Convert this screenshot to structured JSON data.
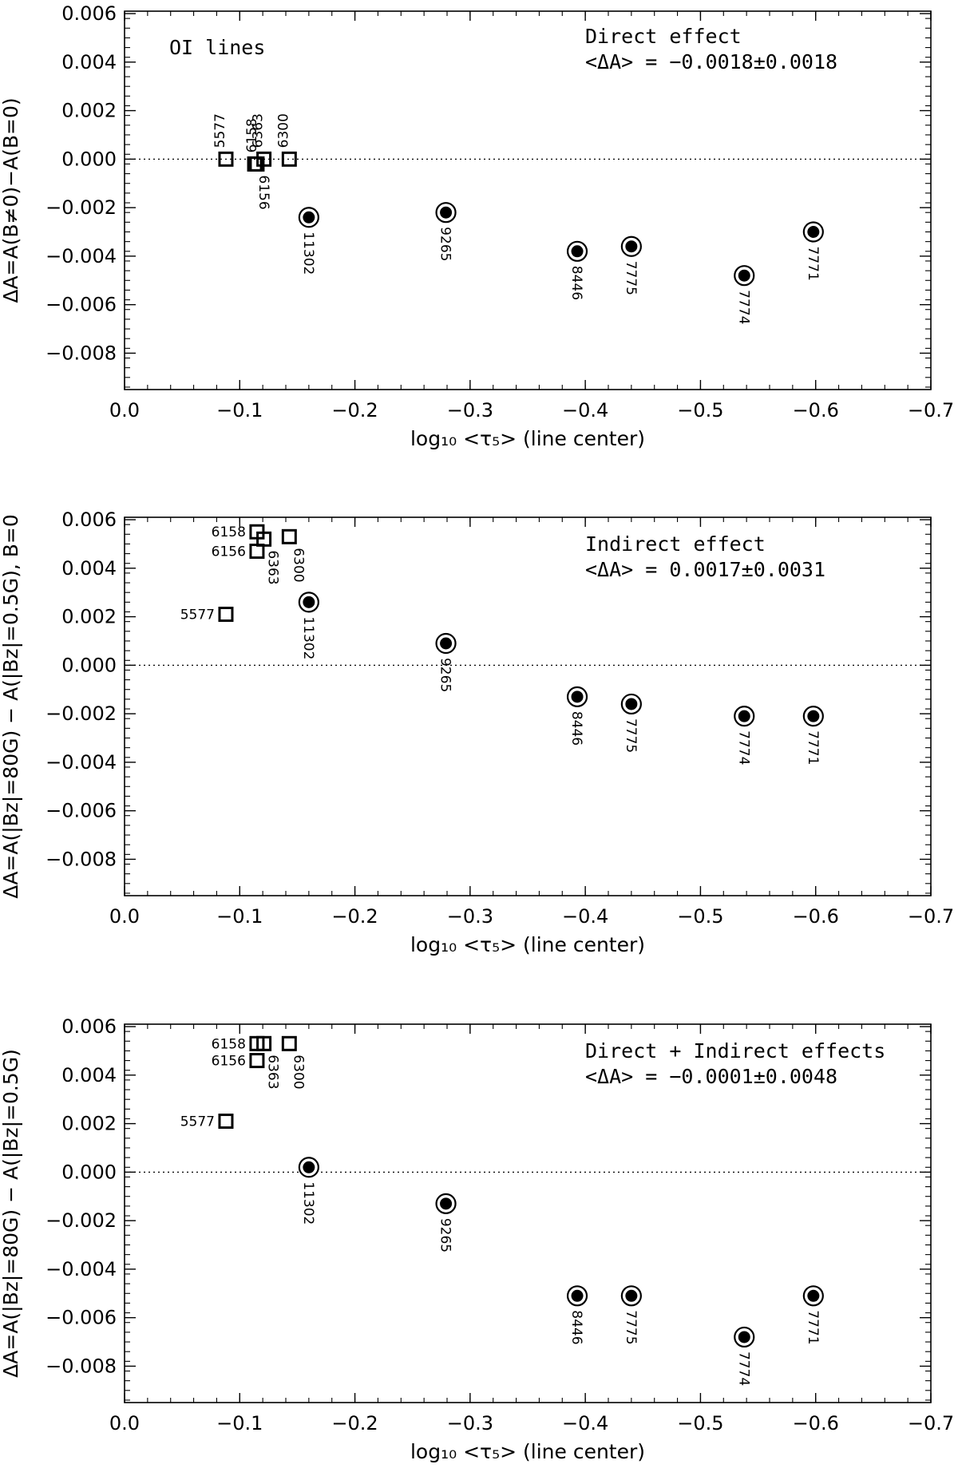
{
  "chart_data": [
    {
      "type": "scatter",
      "title": "",
      "xlabel": "log₁₀ <τ₅> (line center)",
      "ylabel": "ΔA=A(B≠0)−A(B=0)",
      "xlim": [
        0.0,
        -0.7
      ],
      "ylim": [
        -0.0095,
        0.0061
      ],
      "xticks": [
        "0.0",
        "−0.1",
        "−0.2",
        "−0.3",
        "−0.4",
        "−0.5",
        "−0.6",
        "−0.7"
      ],
      "yticks": [
        "0.006",
        "0.004",
        "0.002",
        "0.000",
        "−0.002",
        "−0.004",
        "−0.006",
        "−0.008"
      ],
      "annotations": [
        "OI lines",
        "Direct effect",
        "<ΔA> = −0.0018±0.0018"
      ],
      "series": [
        {
          "marker": "open-square",
          "points": [
            {
              "label": "5577",
              "x": -0.088,
              "y": 0.0
            },
            {
              "label": "6158",
              "x": -0.115,
              "y": -0.0002
            },
            {
              "label": "6156",
              "x": -0.113,
              "y": -0.0002
            },
            {
              "label": "6363",
              "x": -0.121,
              "y": 0.0
            },
            {
              "label": "6300",
              "x": -0.143,
              "y": 0.0
            }
          ]
        },
        {
          "marker": "circled-dot",
          "points": [
            {
              "label": "11302",
              "x": -0.16,
              "y": -0.0024
            },
            {
              "label": "9265",
              "x": -0.279,
              "y": -0.0022
            },
            {
              "label": "8446",
              "x": -0.393,
              "y": -0.0038
            },
            {
              "label": "7775",
              "x": -0.44,
              "y": -0.0036
            },
            {
              "label": "7774",
              "x": -0.538,
              "y": -0.0048
            },
            {
              "label": "7771",
              "x": -0.598,
              "y": -0.003
            }
          ]
        }
      ]
    },
    {
      "type": "scatter",
      "title": "",
      "xlabel": "log₁₀ <τ₅> (line center)",
      "ylabel": "ΔA=A(|Bz|=80G) − A(|Bz|=0.5G), B=0",
      "xlim": [
        0.0,
        -0.7
      ],
      "ylim": [
        -0.0095,
        0.0061
      ],
      "xticks": [
        "0.0",
        "−0.1",
        "−0.2",
        "−0.3",
        "−0.4",
        "−0.5",
        "−0.6",
        "−0.7"
      ],
      "yticks": [
        "0.006",
        "0.004",
        "0.002",
        "0.000",
        "−0.002",
        "−0.004",
        "−0.006",
        "−0.008"
      ],
      "annotations": [
        "Indirect effect",
        "<ΔA> = 0.0017±0.0031"
      ],
      "series": [
        {
          "marker": "open-square",
          "points": [
            {
              "label": "5577",
              "x": -0.088,
              "y": 0.0021
            },
            {
              "label": "6158",
              "x": -0.115,
              "y": 0.0055
            },
            {
              "label": "6156",
              "x": -0.115,
              "y": 0.0047
            },
            {
              "label": "6363",
              "x": -0.121,
              "y": 0.0052
            },
            {
              "label": "6300",
              "x": -0.143,
              "y": 0.0053
            }
          ]
        },
        {
          "marker": "circled-dot",
          "points": [
            {
              "label": "11302",
              "x": -0.16,
              "y": 0.0026
            },
            {
              "label": "9265",
              "x": -0.279,
              "y": 0.0009
            },
            {
              "label": "8446",
              "x": -0.393,
              "y": -0.0013
            },
            {
              "label": "7775",
              "x": -0.44,
              "y": -0.0016
            },
            {
              "label": "7774",
              "x": -0.538,
              "y": -0.0021
            },
            {
              "label": "7771",
              "x": -0.598,
              "y": -0.0021
            }
          ]
        }
      ]
    },
    {
      "type": "scatter",
      "title": "",
      "xlabel": "log₁₀ <τ₅> (line center)",
      "ylabel": "ΔA=A(|Bz|=80G) − A(|Bz|=0.5G)",
      "xlim": [
        0.0,
        -0.7
      ],
      "ylim": [
        -0.0095,
        0.0061
      ],
      "xticks": [
        "0.0",
        "−0.1",
        "−0.2",
        "−0.3",
        "−0.4",
        "−0.5",
        "−0.6",
        "−0.7"
      ],
      "yticks": [
        "0.006",
        "0.004",
        "0.002",
        "0.000",
        "−0.002",
        "−0.004",
        "−0.006",
        "−0.008"
      ],
      "annotations": [
        "Direct + Indirect effects",
        "<ΔA> = −0.0001±0.0048"
      ],
      "series": [
        {
          "marker": "open-square",
          "points": [
            {
              "label": "5577",
              "x": -0.088,
              "y": 0.0021
            },
            {
              "label": "6158",
              "x": -0.115,
              "y": 0.0053
            },
            {
              "label": "6156",
              "x": -0.115,
              "y": 0.0046
            },
            {
              "label": "6363",
              "x": -0.121,
              "y": 0.0053
            },
            {
              "label": "6300",
              "x": -0.143,
              "y": 0.0053
            }
          ]
        },
        {
          "marker": "circled-dot",
          "points": [
            {
              "label": "11302",
              "x": -0.16,
              "y": 0.0002
            },
            {
              "label": "9265",
              "x": -0.279,
              "y": -0.0013
            },
            {
              "label": "8446",
              "x": -0.393,
              "y": -0.0051
            },
            {
              "label": "7775",
              "x": -0.44,
              "y": -0.0051
            },
            {
              "label": "7774",
              "x": -0.538,
              "y": -0.0068
            },
            {
              "label": "7771",
              "x": -0.598,
              "y": -0.0051
            }
          ]
        }
      ]
    }
  ]
}
